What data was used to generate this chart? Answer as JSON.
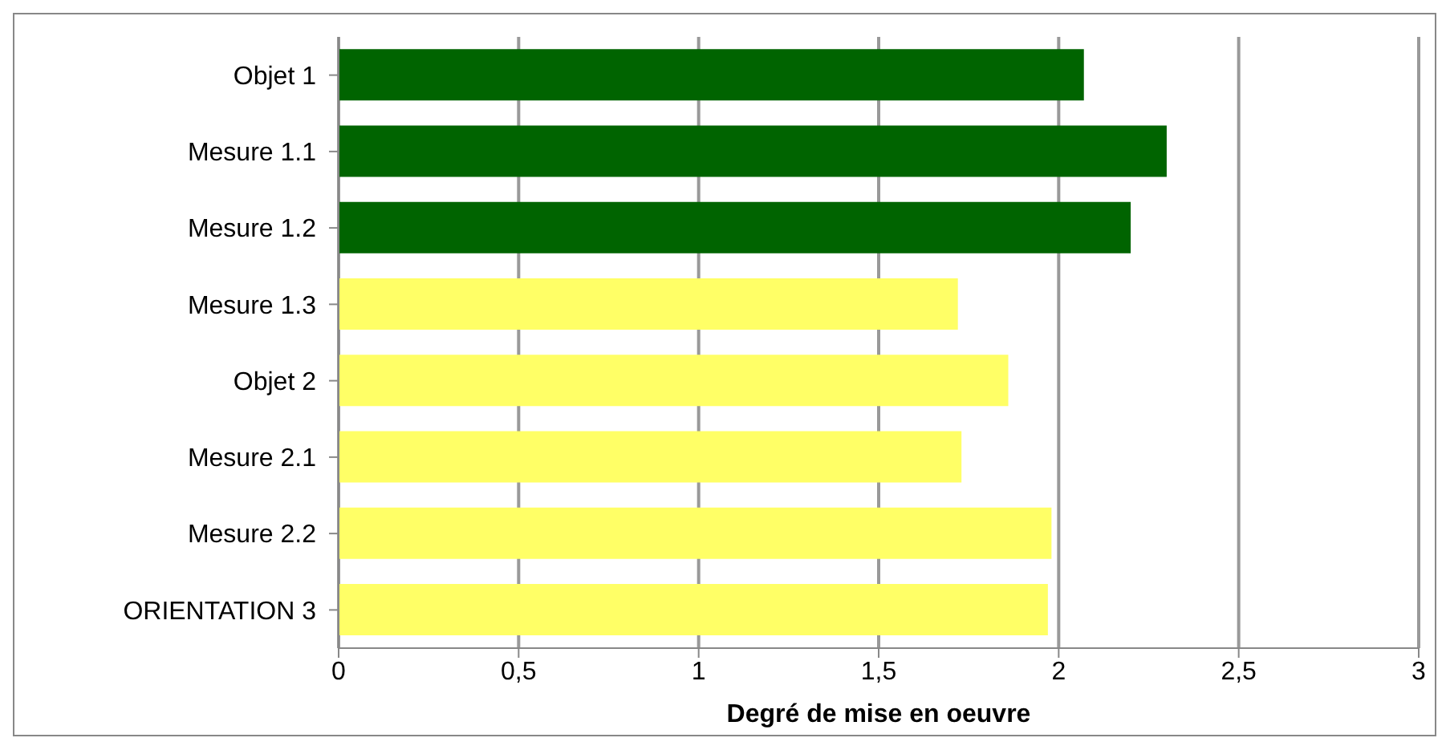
{
  "chart_data": {
    "type": "bar",
    "orientation": "horizontal",
    "xlabel": "Degré de mise en oeuvre",
    "categories": [
      "Objet 1",
      "Mesure 1.1",
      "Mesure 1.2",
      "Mesure 1.3",
      "Objet 2",
      "Mesure 2.1",
      "Mesure 2.2",
      "ORIENTATION 3"
    ],
    "values": [
      2.07,
      2.3,
      2.2,
      1.72,
      1.86,
      1.73,
      1.98,
      1.97
    ],
    "colors": [
      "#006400",
      "#006400",
      "#006400",
      "#ffff66",
      "#ffff66",
      "#ffff66",
      "#ffff66",
      "#ffff66"
    ],
    "xlim": [
      0,
      3
    ],
    "xticks": [
      0,
      {
        "value": 0.5,
        "label": "0,5"
      },
      1,
      {
        "value": 1.5,
        "label": "1,5"
      },
      2,
      {
        "value": 2.5,
        "label": "2,5"
      },
      3
    ],
    "grid": "x",
    "legend": false
  }
}
